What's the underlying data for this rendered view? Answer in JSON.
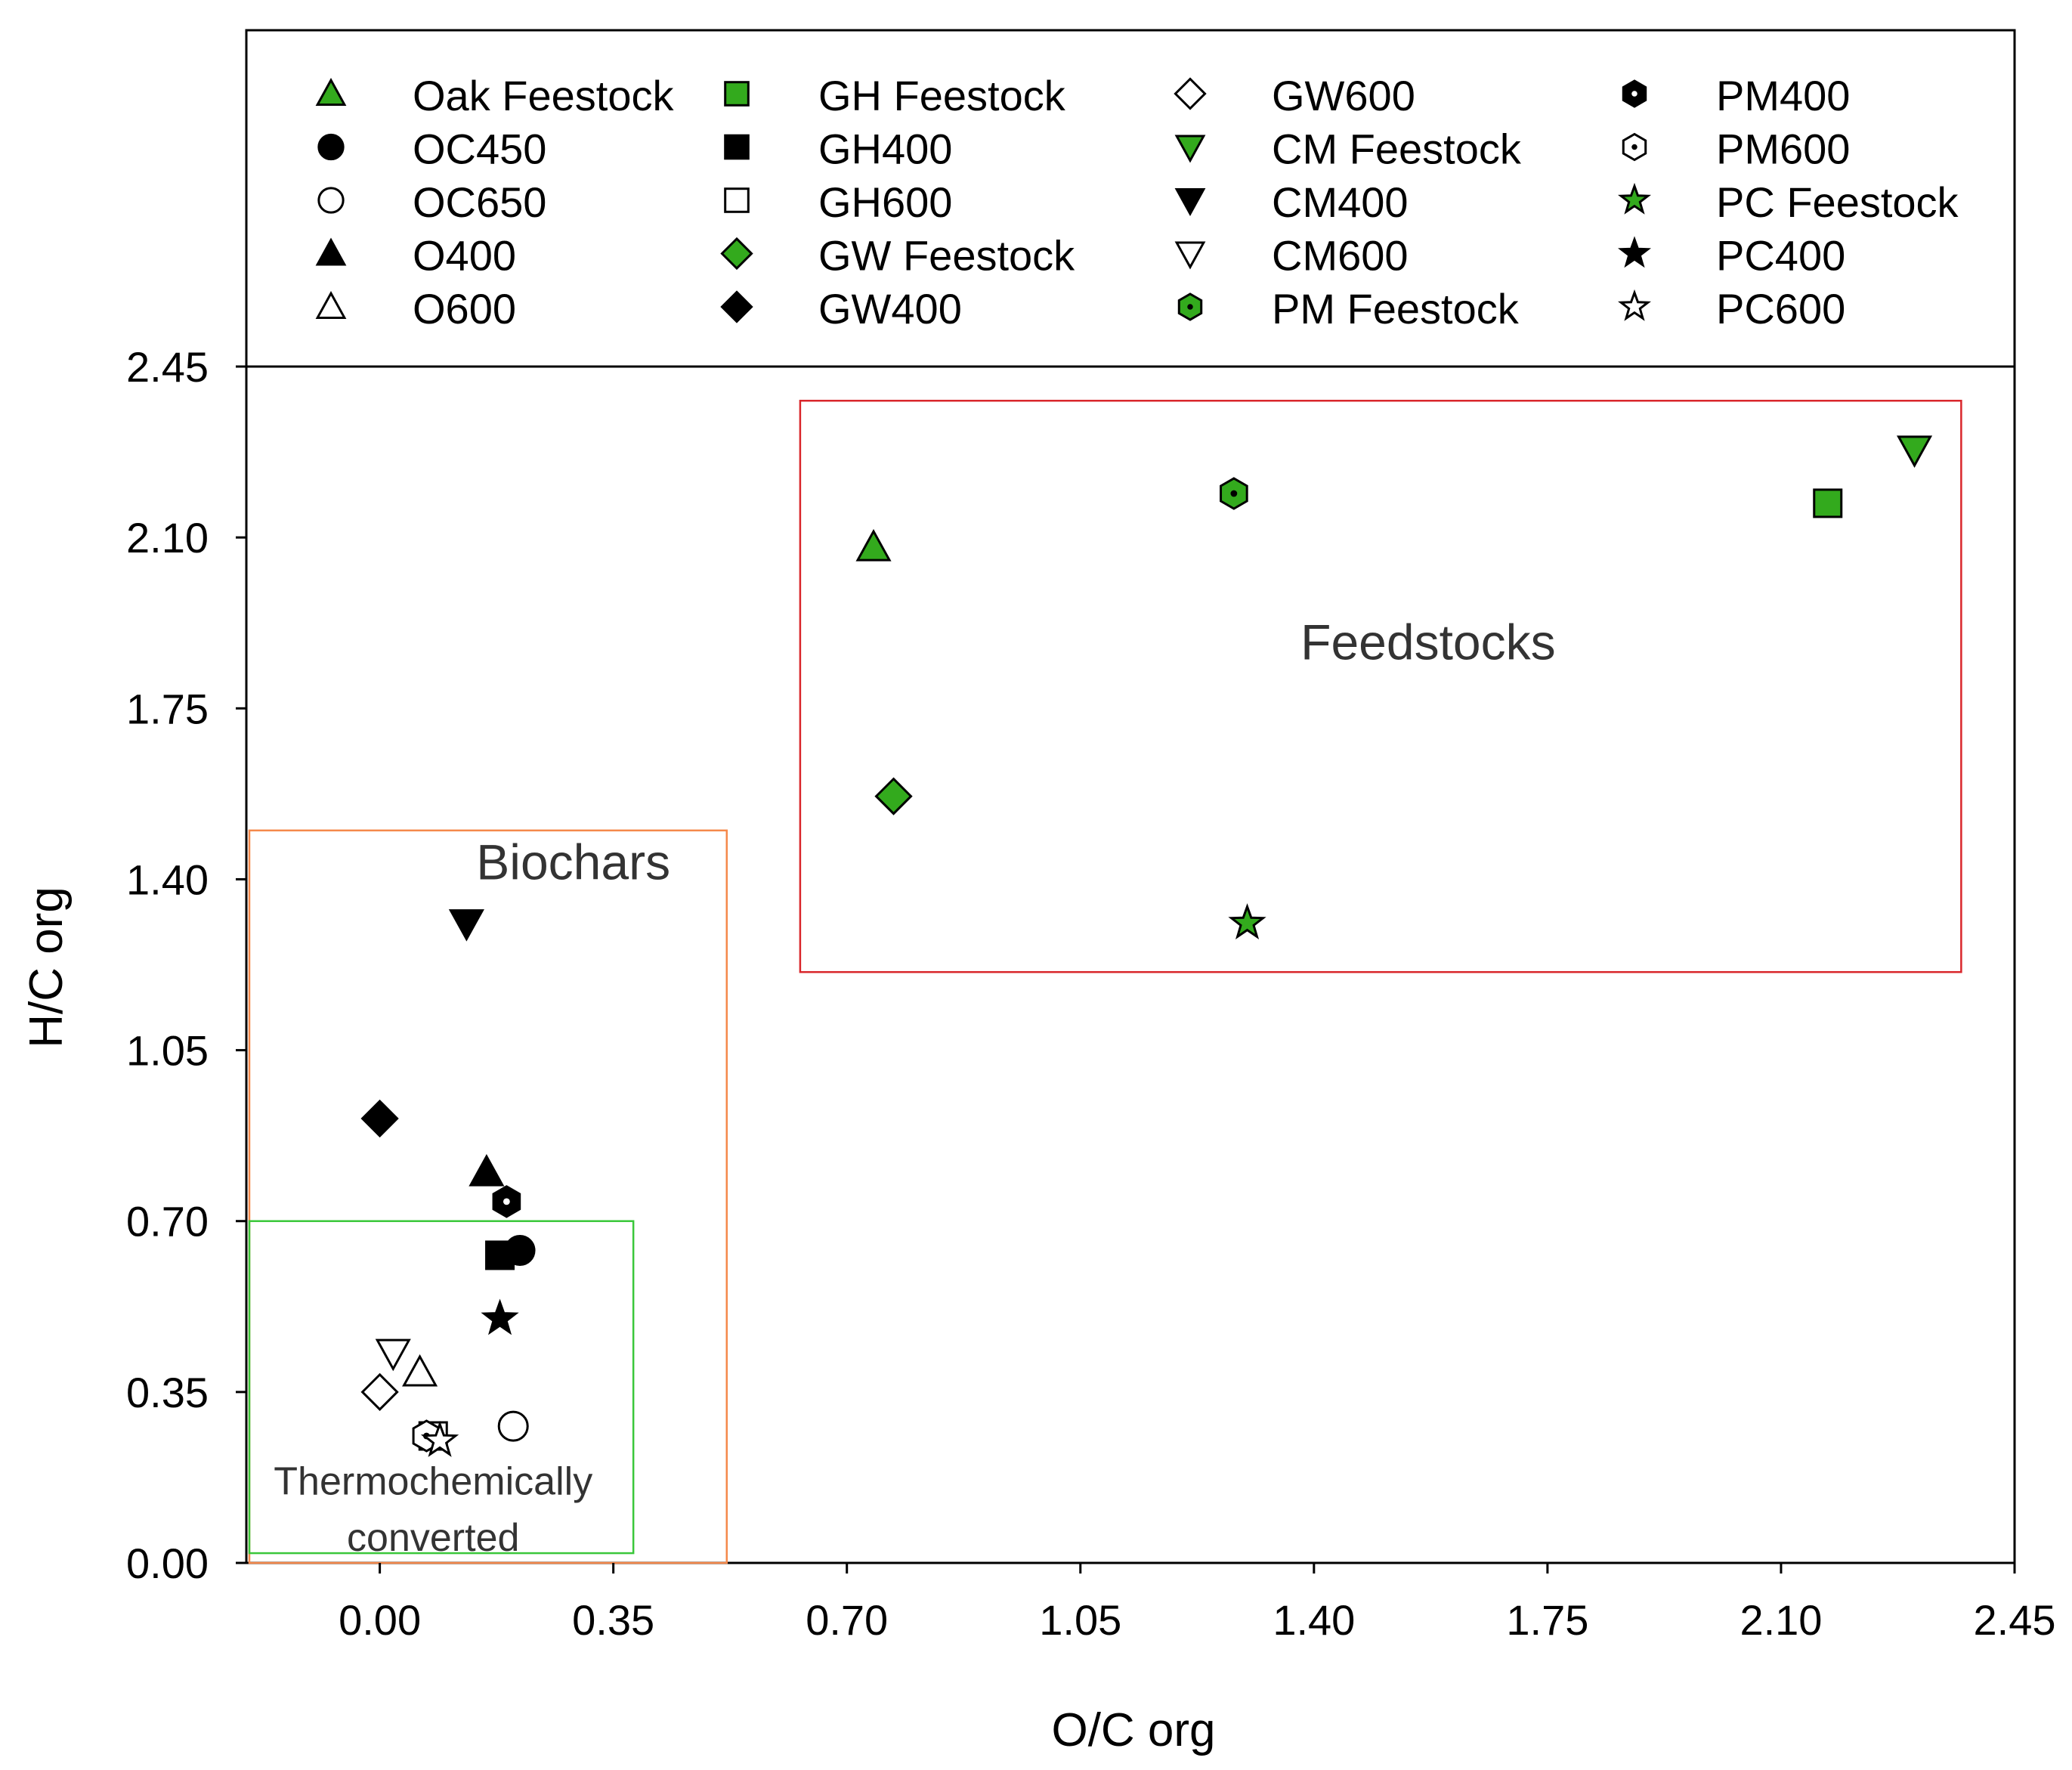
{
  "chart_data": {
    "type": "scatter",
    "xlabel": "O/C org",
    "ylabel": "H/C org",
    "xlim": [
      -0.2,
      2.45
    ],
    "ylim": [
      0.0,
      2.45
    ],
    "xticks": [
      "0.00",
      "0.35",
      "0.70",
      "1.05",
      "1.40",
      "1.75",
      "2.10",
      "2.45"
    ],
    "yticks": [
      "0.00",
      "0.35",
      "0.70",
      "1.05",
      "1.40",
      "1.75",
      "2.10",
      "2.45"
    ],
    "legend_position": "top",
    "series": [
      {
        "name": "Oak Feestock",
        "marker": "triangle-up",
        "fill": "green",
        "points": [
          [
            0.74,
            2.08
          ]
        ]
      },
      {
        "name": "OC450",
        "marker": "circle",
        "fill": "black",
        "points": [
          [
            0.21,
            0.64
          ]
        ]
      },
      {
        "name": "OC650",
        "marker": "circle",
        "fill": "white",
        "points": [
          [
            0.2,
            0.28
          ]
        ]
      },
      {
        "name": "O400",
        "marker": "triangle-up",
        "fill": "black",
        "points": [
          [
            0.16,
            0.8
          ]
        ]
      },
      {
        "name": "O600",
        "marker": "triangle-up",
        "fill": "white",
        "points": [
          [
            0.06,
            0.39
          ]
        ]
      },
      {
        "name": "GH Feestock",
        "marker": "square",
        "fill": "green",
        "points": [
          [
            2.17,
            2.17
          ]
        ]
      },
      {
        "name": "GH400",
        "marker": "square",
        "fill": "black",
        "points": [
          [
            0.18,
            0.63
          ]
        ]
      },
      {
        "name": "GH600",
        "marker": "square",
        "fill": "white",
        "points": [
          [
            0.08,
            0.26
          ]
        ]
      },
      {
        "name": "GW Feestock",
        "marker": "diamond",
        "fill": "green",
        "points": [
          [
            0.77,
            1.57
          ]
        ]
      },
      {
        "name": "GW400",
        "marker": "diamond",
        "fill": "black",
        "points": [
          [
            0.0,
            0.91
          ]
        ]
      },
      {
        "name": "GW600",
        "marker": "diamond",
        "fill": "white",
        "points": [
          [
            0.0,
            0.35
          ]
        ]
      },
      {
        "name": "CM Feestock",
        "marker": "triangle-down",
        "fill": "green",
        "points": [
          [
            2.3,
            2.28
          ]
        ]
      },
      {
        "name": "CM400",
        "marker": "triangle-down",
        "fill": "black",
        "points": [
          [
            0.13,
            1.31
          ]
        ]
      },
      {
        "name": "CM600",
        "marker": "triangle-down",
        "fill": "white",
        "points": [
          [
            0.02,
            0.43
          ]
        ]
      },
      {
        "name": "PM Feestock",
        "marker": "hexagon-dot",
        "fill": "green",
        "points": [
          [
            1.28,
            2.19
          ]
        ]
      },
      {
        "name": "PM400",
        "marker": "hexagon-dot",
        "fill": "black",
        "points": [
          [
            0.19,
            0.74
          ]
        ]
      },
      {
        "name": "PM600",
        "marker": "hexagon-dot",
        "fill": "white",
        "points": [
          [
            0.07,
            0.26
          ]
        ]
      },
      {
        "name": "PC Feestock",
        "marker": "star",
        "fill": "green",
        "points": [
          [
            1.3,
            1.31
          ]
        ]
      },
      {
        "name": "PC400",
        "marker": "star",
        "fill": "black",
        "points": [
          [
            0.18,
            0.5
          ]
        ]
      },
      {
        "name": "PC600",
        "marker": "star",
        "fill": "white",
        "points": [
          [
            0.09,
            0.25
          ]
        ]
      }
    ],
    "regions": [
      {
        "label": "Feedstocks",
        "color": "#d9262b",
        "x_range": [
          0.63,
          2.37
        ],
        "y_range": [
          1.21,
          2.38
        ]
      },
      {
        "label": "Biochars",
        "color": "#f5894b",
        "x_range": [
          -0.2,
          0.52
        ],
        "y_range": [
          0.0,
          1.5
        ]
      },
      {
        "label": "Thermochemically converted",
        "color": "#3ac73a",
        "x_range": [
          -0.2,
          0.38
        ],
        "y_range": [
          0.02,
          0.7
        ]
      }
    ]
  },
  "colors": {
    "green": "#33aa1d",
    "black": "#000000",
    "white": "#ffffff"
  }
}
